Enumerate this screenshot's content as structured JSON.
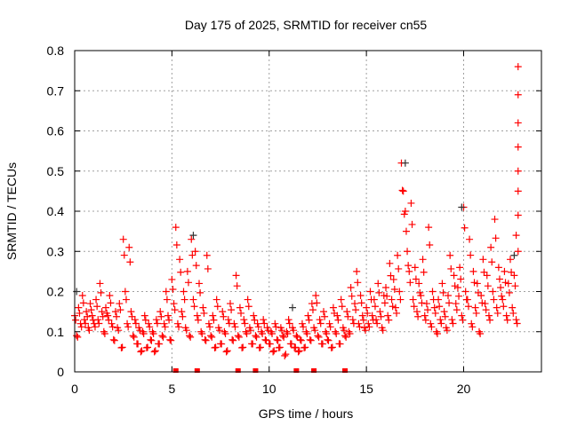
{
  "chart_data": {
    "type": "scatter",
    "title": "Day 175 of 2025, SRMTID for receiver cn55",
    "xlabel": "GPS time / hours",
    "ylabel": "SRMTID / TECUs",
    "xlim": [
      0,
      24
    ],
    "ylim": [
      0,
      0.8
    ],
    "grid": true,
    "xticks": [
      0,
      5,
      10,
      15,
      20
    ],
    "xtick_labels": [
      "0",
      "5",
      "10",
      "15",
      "20"
    ],
    "yticks": [
      0,
      0.1,
      0.2,
      0.3,
      0.4,
      0.5,
      0.6,
      0.7,
      0.8
    ],
    "ytick_labels": [
      "0",
      "0.1",
      "0.2",
      "0.3",
      "0.4",
      "0.5",
      "0.6",
      "0.7",
      "0.8"
    ],
    "colors": {
      "main": "#ff0000",
      "secondary": "#333333",
      "grid": "#a0a0a0"
    },
    "series": [
      {
        "name": "SRMTID (red)",
        "x_start": 0,
        "x_step": 0.1,
        "values": [
          0.14,
          0.09,
          0.16,
          0.12,
          0.19,
          0.13,
          0.15,
          0.11,
          0.17,
          0.14,
          0.12,
          0.18,
          0.13,
          0.22,
          0.15,
          0.1,
          0.16,
          0.14,
          0.19,
          0.12,
          0.08,
          0.15,
          0.11,
          0.17,
          0.06,
          0.33,
          0.2,
          0.12,
          0.31,
          0.15,
          0.09,
          0.13,
          0.07,
          0.11,
          0.05,
          0.1,
          0.14,
          0.06,
          0.12,
          0.08,
          0.1,
          0.05,
          0.13,
          0.07,
          0.15,
          0.09,
          0.12,
          0.2,
          0.14,
          0.08,
          0.23,
          0.17,
          0.36,
          0.12,
          0.28,
          0.15,
          0.2,
          0.11,
          0.25,
          0.09,
          0.33,
          0.18,
          0.3,
          0.14,
          0.22,
          0.1,
          0.16,
          0.08,
          0.29,
          0.12,
          0.09,
          0.14,
          0.06,
          0.18,
          0.11,
          0.07,
          0.15,
          0.1,
          0.05,
          0.13,
          0.17,
          0.08,
          0.12,
          0.24,
          0.09,
          0.16,
          0.06,
          0.13,
          0.1,
          0.18,
          0.11,
          0.07,
          0.14,
          0.09,
          0.12,
          0.06,
          0.1,
          0.13,
          0.08,
          0.11,
          0.07,
          0.1,
          0.05,
          0.12,
          0.08,
          0.06,
          0.11,
          0.09,
          0.04,
          0.1,
          0.13,
          0.07,
          0.11,
          0.06,
          0.09,
          0.05,
          0.08,
          0.12,
          0.06,
          0.1,
          0.14,
          0.08,
          0.17,
          0.11,
          0.19,
          0.09,
          0.13,
          0.07,
          0.15,
          0.1,
          0.08,
          0.12,
          0.06,
          0.16,
          0.1,
          0.14,
          0.07,
          0.18,
          0.11,
          0.09,
          0.15,
          0.1,
          0.21,
          0.13,
          0.17,
          0.25,
          0.12,
          0.19,
          0.14,
          0.11,
          0.16,
          0.12,
          0.2,
          0.14,
          0.18,
          0.13,
          0.22,
          0.15,
          0.11,
          0.19,
          0.21,
          0.14,
          0.27,
          0.18,
          0.23,
          0.16,
          0.29,
          0.2,
          0.52,
          0.45,
          0.4,
          0.3,
          0.25,
          0.42,
          0.18,
          0.26,
          0.15,
          0.22,
          0.19,
          0.28,
          0.14,
          0.17,
          0.36,
          0.12,
          0.2,
          0.16,
          0.1,
          0.18,
          0.13,
          0.22,
          0.15,
          0.11,
          0.19,
          0.29,
          0.13,
          0.24,
          0.17,
          0.21,
          0.26,
          0.14,
          0.41,
          0.2,
          0.18,
          0.33,
          0.12,
          0.25,
          0.16,
          0.22,
          0.1,
          0.19,
          0.28,
          0.17,
          0.24,
          0.14,
          0.31,
          0.2,
          0.38,
          0.16,
          0.26,
          0.21,
          0.18,
          0.25,
          0.14,
          0.22,
          0.28,
          0.16,
          0.24,
          0.13
        ],
        "extra_points": [
          [
            22.8,
            0.76
          ],
          [
            22.8,
            0.69
          ],
          [
            22.8,
            0.62
          ],
          [
            22.8,
            0.56
          ],
          [
            22.8,
            0.5
          ],
          [
            22.8,
            0.45
          ],
          [
            22.8,
            0.39
          ],
          [
            22.8,
            0.3
          ],
          [
            22.7,
            0.34
          ]
        ]
      },
      {
        "name": "SRMTID (gray)",
        "points": [
          [
            0.1,
            0.2
          ],
          [
            6.1,
            0.34
          ],
          [
            11.2,
            0.16
          ],
          [
            17.0,
            0.52
          ],
          [
            19.9,
            0.41
          ],
          [
            22.6,
            0.29
          ]
        ]
      },
      {
        "name": "zero markers",
        "points": [
          [
            5.2,
            0
          ],
          [
            6.3,
            0
          ],
          [
            8.4,
            0
          ],
          [
            9.3,
            0
          ],
          [
            11.4,
            0
          ],
          [
            12.3,
            0
          ],
          [
            13.9,
            0
          ]
        ]
      }
    ]
  }
}
